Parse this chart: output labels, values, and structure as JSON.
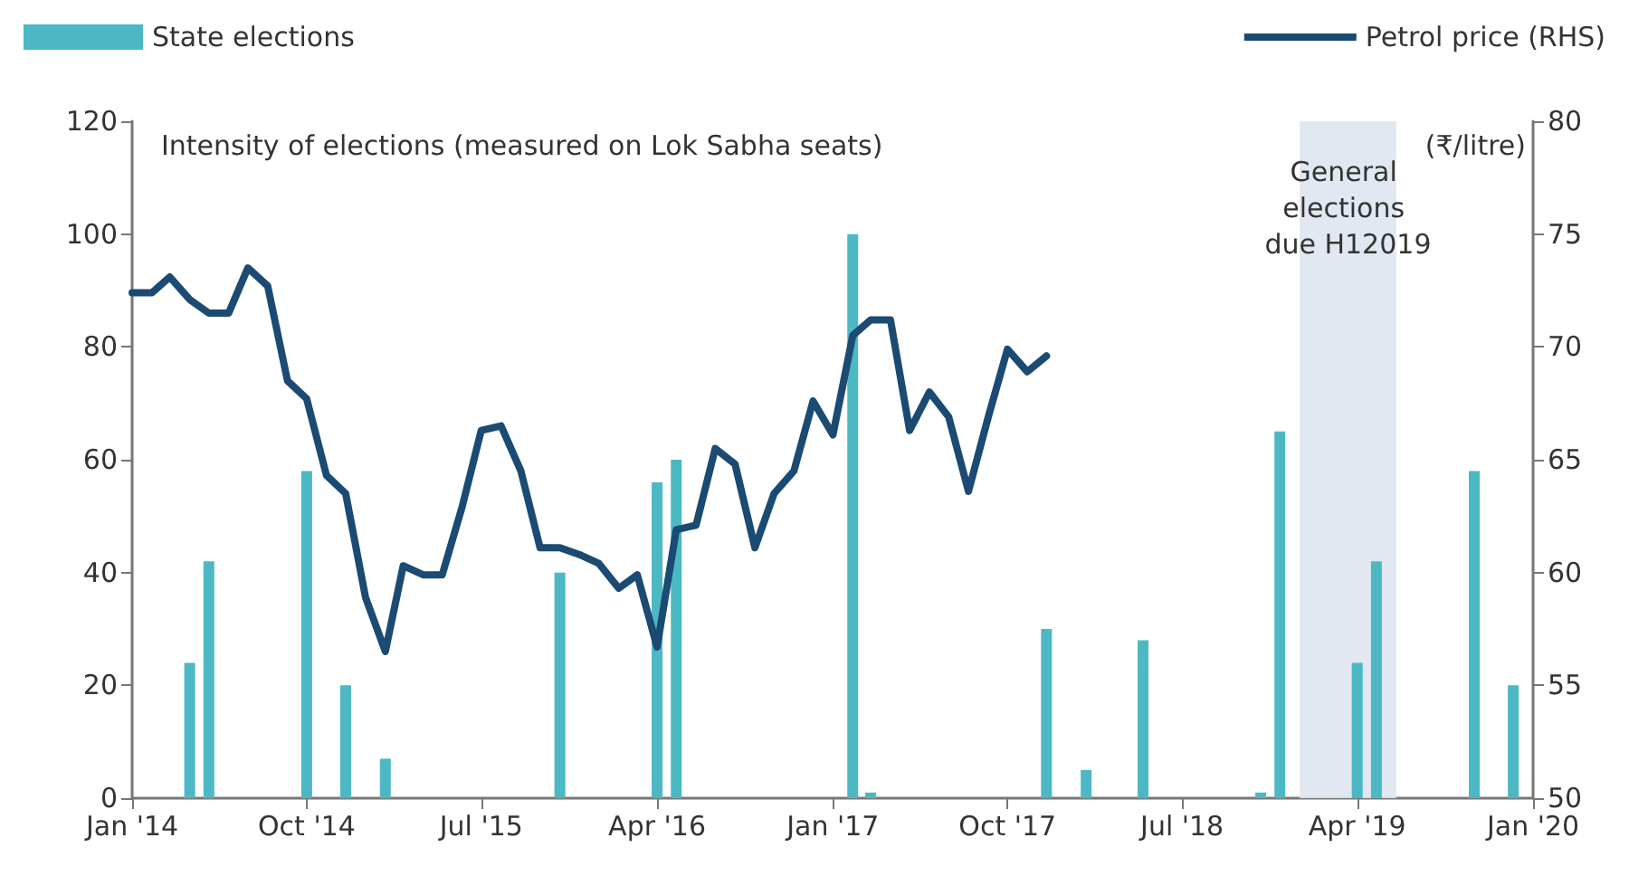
{
  "chart_data": {
    "type": "bar",
    "ylabel": "Intensity of elections (measured on Lok Sabha seats)",
    "y2label": "(₹/litre)",
    "series": [
      {
        "name": "State elections",
        "color": "#4cb8c4",
        "x": [
          "2014-04",
          "2014-05",
          "2014-10",
          "2014-12",
          "2015-02",
          "2015-11",
          "2016-04",
          "2016-05",
          "2017-02",
          "2017-03",
          "2017-12",
          "2018-02",
          "2018-05",
          "2018-11",
          "2018-12",
          "2019-04",
          "2019-05",
          "2019-10",
          "2019-12"
        ],
        "values": [
          24,
          42,
          58,
          20,
          7,
          40,
          56,
          60,
          100,
          1,
          30,
          5,
          28,
          1,
          65,
          24,
          42,
          58,
          20
        ]
      },
      {
        "name": "Petrol price (RHS)",
        "type": "line",
        "axis": "y2",
        "color": "#1b4a72",
        "x": [
          "2014-01",
          "2014-02",
          "2014-03",
          "2014-04",
          "2014-05",
          "2014-06",
          "2014-07",
          "2014-08",
          "2014-09",
          "2014-10",
          "2014-11",
          "2014-12",
          "2015-01",
          "2015-02",
          "2015-03",
          "2015-04",
          "2015-05",
          "2015-06",
          "2015-07",
          "2015-08",
          "2015-09",
          "2015-10",
          "2015-11",
          "2015-12",
          "2016-01",
          "2016-02",
          "2016-03",
          "2016-04",
          "2016-05",
          "2016-06",
          "2016-07",
          "2016-08",
          "2016-09",
          "2016-10",
          "2016-11",
          "2016-12",
          "2017-01",
          "2017-02",
          "2017-03",
          "2017-04",
          "2017-05",
          "2017-06",
          "2017-07",
          "2017-08",
          "2017-09",
          "2017-10",
          "2017-11",
          "2017-12"
        ],
        "values": [
          72.4,
          72.4,
          73.1,
          72.1,
          71.5,
          71.5,
          73.5,
          72.7,
          68.5,
          67.7,
          64.3,
          63.5,
          58.9,
          56.5,
          60.3,
          59.9,
          59.9,
          62.9,
          66.3,
          66.5,
          64.5,
          61.1,
          61.1,
          60.8,
          60.4,
          59.3,
          59.9,
          56.7,
          61.9,
          62.1,
          65.5,
          64.8,
          61.1,
          63.5,
          64.5,
          67.6,
          66.1,
          70.5,
          71.2,
          71.2,
          66.3,
          68.0,
          66.9,
          63.6,
          66.9,
          69.9,
          68.9,
          69.6
        ]
      }
    ],
    "xlim": [
      "2014-01",
      "2020-01"
    ],
    "xticks": [
      {
        "value": "2014-01",
        "label": "Jan '14"
      },
      {
        "value": "2014-10",
        "label": "Oct '14"
      },
      {
        "value": "2015-07",
        "label": "Jul '15"
      },
      {
        "value": "2016-04",
        "label": "Apr '16"
      },
      {
        "value": "2017-01",
        "label": "Jan '17"
      },
      {
        "value": "2017-10",
        "label": "Oct '17"
      },
      {
        "value": "2018-07",
        "label": "Jul '18"
      },
      {
        "value": "2019-04",
        "label": "Apr '19"
      },
      {
        "value": "2020-01",
        "label": "Jan '20"
      }
    ],
    "ylim": [
      0,
      120
    ],
    "yticks": [
      0,
      20,
      40,
      60,
      80,
      100,
      120
    ],
    "y2lim": [
      50,
      80
    ],
    "y2ticks": [
      50,
      55,
      60,
      65,
      70,
      75,
      80
    ],
    "bands": [
      {
        "axis": "x",
        "from": "2019-01",
        "to": "2019-06",
        "label": "General elections due H12019",
        "color": "#dfe5ef"
      }
    ],
    "legend": "top",
    "grid": false,
    "marker": "none",
    "line_style": "solid"
  }
}
